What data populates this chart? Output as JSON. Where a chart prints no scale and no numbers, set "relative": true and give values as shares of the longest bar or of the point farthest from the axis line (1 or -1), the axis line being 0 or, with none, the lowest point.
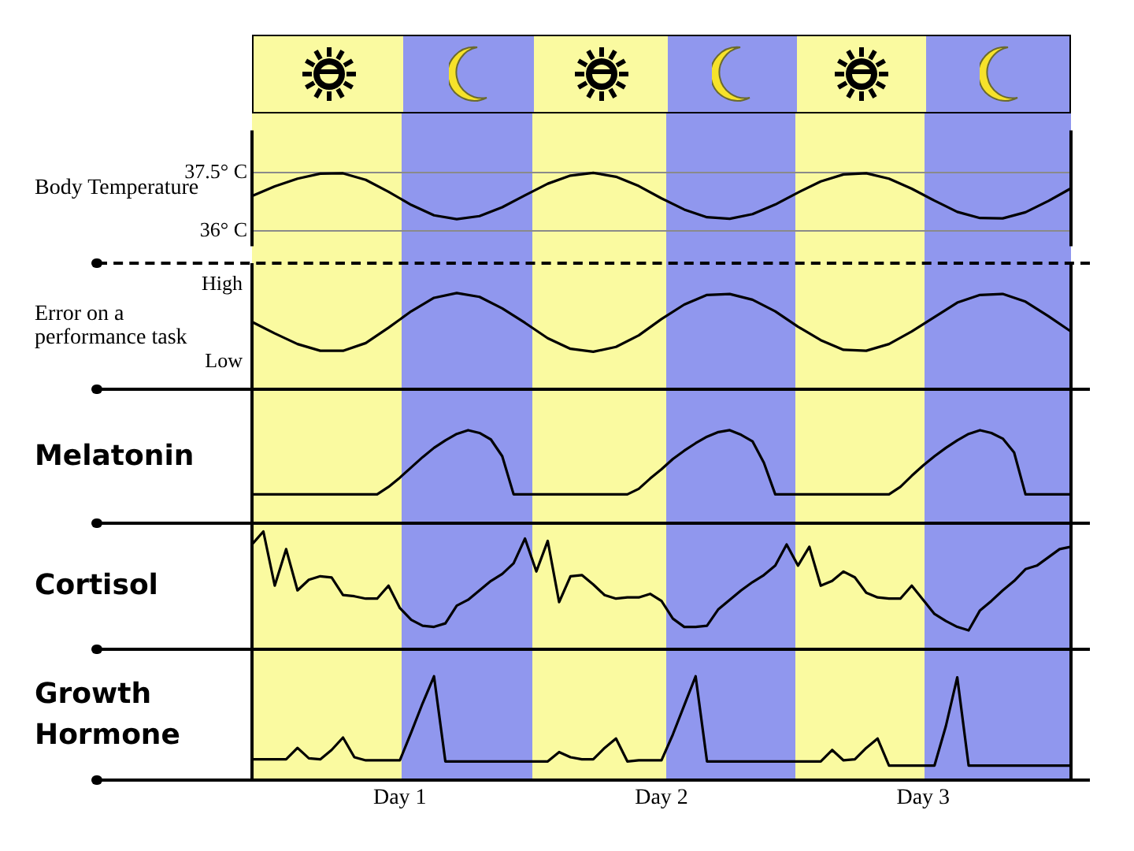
{
  "chart_data": [
    {
      "type": "line",
      "ylabel": "Body Temperature",
      "ylim": [
        35.6,
        38.6
      ],
      "yticks": [
        {
          "value": 37.5,
          "label": "37.5° C"
        },
        {
          "value": 36,
          "label": "36° C"
        }
      ],
      "grid": "y",
      "tick_labels": "y",
      "marker": "none",
      "line_style": "solid",
      "color": "#000000",
      "categories": [
        null,
        null,
        null,
        null,
        null,
        null,
        null,
        null,
        null,
        null,
        null,
        null,
        null,
        null,
        null,
        null,
        null,
        null,
        null,
        null,
        null,
        null,
        null,
        null,
        null,
        null,
        null,
        null,
        null,
        null,
        null,
        null,
        null,
        null,
        null,
        null,
        null
      ],
      "values": [
        36.9,
        37.15,
        37.35,
        37.48,
        37.49,
        37.32,
        37.01,
        36.67,
        36.4,
        36.3,
        36.38,
        36.61,
        36.92,
        37.22,
        37.43,
        37.5,
        37.4,
        37.16,
        36.84,
        36.55,
        36.35,
        36.31,
        36.43,
        36.68,
        36.99,
        37.28,
        37.46,
        37.49,
        37.35,
        37.09,
        36.78,
        36.49,
        36.33,
        36.32,
        36.48,
        36.77,
        37.1
      ]
    },
    {
      "type": "line",
      "ylabel": "Error on a performance task",
      "relative": true,
      "annotations": [
        "High",
        "Low"
      ],
      "tick_labels": false,
      "marker": "none",
      "line_style": "solid",
      "color": "#000000",
      "categories": [
        null,
        null,
        null,
        null,
        null,
        null,
        null,
        null,
        null,
        null,
        null,
        null,
        null,
        null,
        null,
        null,
        null,
        null,
        null,
        null,
        null,
        null,
        null,
        null,
        null,
        null,
        null,
        null,
        null,
        null,
        null,
        null,
        null,
        null,
        null,
        null,
        null
      ],
      "values": [
        0.7,
        0.58,
        0.47,
        0.4,
        0.4,
        0.48,
        0.64,
        0.81,
        0.95,
        1,
        0.96,
        0.84,
        0.69,
        0.53,
        0.42,
        0.39,
        0.44,
        0.56,
        0.73,
        0.88,
        0.98,
        0.99,
        0.93,
        0.81,
        0.65,
        0.51,
        0.41,
        0.4,
        0.47,
        0.6,
        0.75,
        0.9,
        0.98,
        0.99,
        0.91,
        0.76,
        0.6
      ]
    },
    {
      "type": "line",
      "ylabel": "Melatonin",
      "relative": true,
      "tick_labels": false,
      "marker": "none",
      "line_style": "solid",
      "color": "#000000",
      "categories": [
        null,
        null,
        null,
        null,
        null,
        null,
        null,
        null,
        null,
        null,
        null,
        null,
        null,
        null,
        null,
        null,
        null,
        null,
        null,
        null,
        null,
        null,
        null,
        null,
        null,
        null,
        null,
        null,
        null,
        null,
        null,
        null,
        null,
        null,
        null,
        null,
        null,
        null,
        null,
        null,
        null,
        null,
        null,
        null,
        null,
        null,
        null,
        null,
        null,
        null,
        null,
        null,
        null,
        null,
        null,
        null,
        null,
        null,
        null,
        null,
        null,
        null,
        null,
        null,
        null,
        null,
        null,
        null,
        null,
        null,
        null,
        null,
        null
      ],
      "values": [
        0.31,
        0.31,
        0.31,
        0.31,
        0.31,
        0.31,
        0.31,
        0.31,
        0.31,
        0.31,
        0.31,
        0.31,
        0.39,
        0.49,
        0.6,
        0.71,
        0.81,
        0.89,
        0.96,
        1,
        0.97,
        0.9,
        0.72,
        0.31,
        0.31,
        0.31,
        0.31,
        0.31,
        0.31,
        0.31,
        0.31,
        0.31,
        0.31,
        0.31,
        0.37,
        0.48,
        0.58,
        0.69,
        0.78,
        0.86,
        0.93,
        0.98,
        1,
        0.95,
        0.88,
        0.65,
        0.31,
        0.31,
        0.31,
        0.31,
        0.31,
        0.31,
        0.31,
        0.31,
        0.31,
        0.31,
        0.31,
        0.39,
        0.51,
        0.62,
        0.72,
        0.81,
        0.89,
        0.96,
        1,
        0.97,
        0.91,
        0.76,
        0.31,
        0.31,
        0.31,
        0.31,
        0.31
      ]
    },
    {
      "type": "line",
      "ylabel": "Cortisol",
      "relative": true,
      "tick_labels": false,
      "marker": "none",
      "line_style": "solid",
      "color": "#000000",
      "categories": [
        null,
        null,
        null,
        null,
        null,
        null,
        null,
        null,
        null,
        null,
        null,
        null,
        null,
        null,
        null,
        null,
        null,
        null,
        null,
        null,
        null,
        null,
        null,
        null,
        null,
        null,
        null,
        null,
        null,
        null,
        null,
        null,
        null,
        null,
        null,
        null,
        null,
        null,
        null,
        null,
        null,
        null,
        null,
        null,
        null,
        null,
        null,
        null,
        null,
        null,
        null,
        null,
        null,
        null,
        null,
        null,
        null,
        null,
        null,
        null,
        null,
        null,
        null,
        null,
        null,
        null,
        null,
        null,
        null,
        null,
        null,
        null,
        null
      ],
      "values": [
        0.89,
        1,
        0.54,
        0.85,
        0.5,
        0.59,
        0.62,
        0.61,
        0.46,
        0.45,
        0.43,
        0.43,
        0.54,
        0.35,
        0.25,
        0.2,
        0.19,
        0.22,
        0.37,
        0.42,
        0.5,
        0.58,
        0.64,
        0.73,
        0.94,
        0.66,
        0.92,
        0.4,
        0.62,
        0.63,
        0.55,
        0.46,
        0.43,
        0.44,
        0.44,
        0.47,
        0.41,
        0.26,
        0.19,
        0.19,
        0.2,
        0.34,
        0.42,
        0.5,
        0.57,
        0.63,
        0.71,
        0.89,
        0.71,
        0.87,
        0.54,
        0.58,
        0.66,
        0.61,
        0.48,
        0.44,
        0.43,
        0.43,
        0.54,
        0.42,
        0.3,
        0.24,
        0.19,
        0.16,
        0.33,
        0.41,
        0.5,
        0.58,
        0.68,
        0.71,
        0.78,
        0.85,
        0.87
      ]
    },
    {
      "type": "line",
      "ylabel": "Growth Hormone",
      "relative": true,
      "tick_labels": "x",
      "marker": "none",
      "line_style": "solid",
      "color": "#000000",
      "categories": [
        null,
        null,
        null,
        null,
        null,
        null,
        null,
        null,
        null,
        null,
        null,
        null,
        null,
        "Day 1",
        null,
        null,
        null,
        null,
        null,
        null,
        null,
        null,
        null,
        null,
        null,
        null,
        null,
        null,
        null,
        null,
        null,
        null,
        null,
        null,
        null,
        null,
        "Day 2",
        null,
        null,
        null,
        null,
        null,
        null,
        null,
        null,
        null,
        null,
        null,
        null,
        null,
        null,
        null,
        null,
        null,
        null,
        null,
        null,
        null,
        null,
        "Day 3",
        null,
        null,
        null,
        null,
        null,
        null,
        null,
        null,
        null,
        null,
        null,
        null,
        null
      ],
      "values": [
        0.2,
        0.2,
        0.2,
        0.2,
        0.31,
        0.21,
        0.2,
        0.29,
        0.41,
        0.22,
        0.19,
        0.19,
        0.19,
        0.19,
        0.46,
        0.74,
        1,
        0.18,
        0.18,
        0.18,
        0.18,
        0.18,
        0.18,
        0.18,
        0.18,
        0.18,
        0.18,
        0.27,
        0.22,
        0.2,
        0.2,
        0.31,
        0.4,
        0.18,
        0.19,
        0.19,
        0.19,
        0.44,
        0.72,
        1,
        0.18,
        0.18,
        0.18,
        0.18,
        0.18,
        0.18,
        0.18,
        0.18,
        0.18,
        0.18,
        0.18,
        0.29,
        0.19,
        0.2,
        0.31,
        0.4,
        0.14,
        0.14,
        0.14,
        0.14,
        0.14,
        0.52,
        0.99,
        0.14,
        0.14,
        0.14,
        0.14,
        0.14,
        0.14,
        0.14,
        0.14,
        0.14,
        0.14
      ]
    }
  ]
}
